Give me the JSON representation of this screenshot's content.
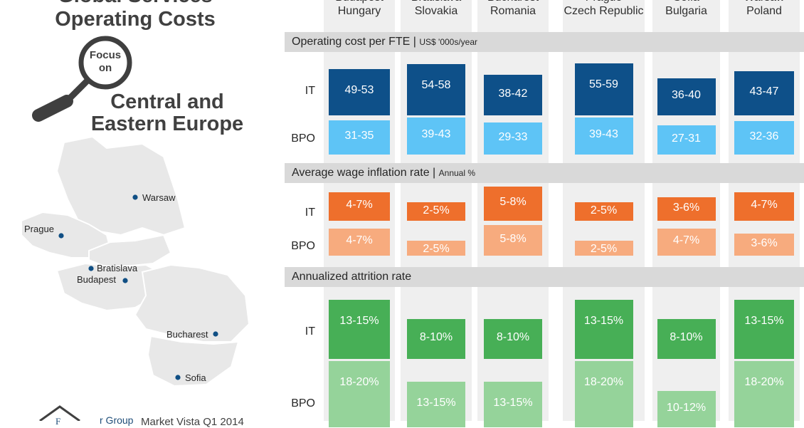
{
  "title": {
    "line1": "Global Services",
    "line2": "Operating Costs"
  },
  "focus": {
    "label_top": "Focus",
    "label_bottom": "on"
  },
  "region": {
    "line1": "Central and",
    "line2": "Eastern Europe"
  },
  "cities": [
    "Warsaw",
    "Prague",
    "Bratislava",
    "Budapest",
    "Bucharest",
    "Sofia"
  ],
  "footer": {
    "brand_initials": "F",
    "brand_tail": "r Group",
    "source": "Market Vista Q1 2014"
  },
  "colors": {
    "it_cost": "#0e5089",
    "bpo_cost": "#5ec4f6",
    "it_wage": "#ee6f2c",
    "bpo_wage": "#f7ab7e",
    "it_attr": "#47af56",
    "bpo_attr": "#95d39a",
    "section_bg": "#d9d9d9",
    "column_bg": "#efefef",
    "dot": "#104f84"
  },
  "chart_data": {
    "type": "table",
    "columns": [
      {
        "city": "Budapest",
        "country": "Hungary"
      },
      {
        "city": "Bratislava",
        "country": "Slovakia"
      },
      {
        "city": "Bucharest",
        "country": "Romania"
      },
      {
        "city": "Prague",
        "country": "Czech Republic"
      },
      {
        "city": "Sofia",
        "country": "Bulgaria"
      },
      {
        "city": "Warsaw",
        "country": "Poland"
      }
    ],
    "row_labels": {
      "it": "IT",
      "bpo": "BPO"
    },
    "sections": [
      {
        "title": "Operating cost per FTE",
        "unit": "US$ '000s/year",
        "it": [
          "49-53",
          "54-58",
          "38-42",
          "55-59",
          "36-40",
          "43-47"
        ],
        "bpo": [
          "31-35",
          "39-43",
          "29-33",
          "39-43",
          "27-31",
          "32-36"
        ],
        "it_mid": [
          51,
          56,
          40,
          57,
          38,
          45
        ],
        "bpo_mid": [
          33,
          41,
          31,
          41,
          29,
          34
        ]
      },
      {
        "title": "Average wage inflation rate",
        "unit": "Annual %",
        "it": [
          "4-7%",
          "2-5%",
          "5-8%",
          "2-5%",
          "3-6%",
          "4-7%"
        ],
        "bpo": [
          "4-7%",
          "2-5%",
          "5-8%",
          "2-5%",
          "4-7%",
          "3-6%"
        ],
        "it_mid": [
          5.5,
          3.5,
          6.5,
          3.5,
          4.5,
          5.5
        ],
        "bpo_mid": [
          5.5,
          3.5,
          6.5,
          3.5,
          5.5,
          4.5
        ]
      },
      {
        "title": "Annualized attrition rate",
        "unit": "",
        "it": [
          "13-15%",
          "8-10%",
          "8-10%",
          "13-15%",
          "8-10%",
          "13-15%"
        ],
        "bpo": [
          "18-20%",
          "13-15%",
          "13-15%",
          "18-20%",
          "10-12%",
          "18-20%"
        ],
        "it_mid": [
          14,
          9,
          9,
          14,
          9,
          14
        ],
        "bpo_mid": [
          19,
          14,
          14,
          19,
          11,
          19
        ]
      }
    ]
  }
}
